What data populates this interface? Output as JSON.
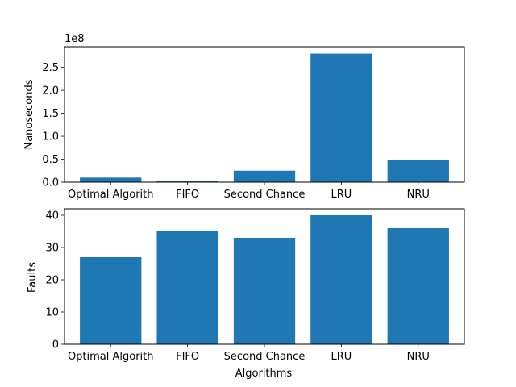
{
  "chart_data": [
    {
      "type": "bar",
      "categories": [
        "Optimal Algorith",
        "FIFO",
        "Second Chance",
        "LRU",
        "NRU"
      ],
      "values": [
        10000000,
        3000000,
        25000000,
        280000000,
        48000000
      ],
      "ylabel": "Nanoseconds",
      "xlabel": "",
      "ylim": [
        0,
        295000000
      ],
      "yticks": [
        0,
        50000000,
        100000000,
        150000000,
        200000000,
        250000000
      ],
      "ytick_labels": [
        "0.0",
        "0.5",
        "1.0",
        "1.5",
        "2.0",
        "2.5"
      ],
      "offset_label": "1e8",
      "color": "#1f77b4",
      "grid": false
    },
    {
      "type": "bar",
      "categories": [
        "Optimal Algorith",
        "FIFO",
        "Second Chance",
        "LRU",
        "NRU"
      ],
      "values": [
        27,
        35,
        33,
        40,
        36
      ],
      "ylabel": "Faults",
      "xlabel": "Algorithms",
      "ylim": [
        0,
        42
      ],
      "yticks": [
        0,
        10,
        20,
        30,
        40
      ],
      "ytick_labels": [
        "0",
        "10",
        "20",
        "30",
        "40"
      ],
      "color": "#1f77b4",
      "grid": false
    }
  ]
}
